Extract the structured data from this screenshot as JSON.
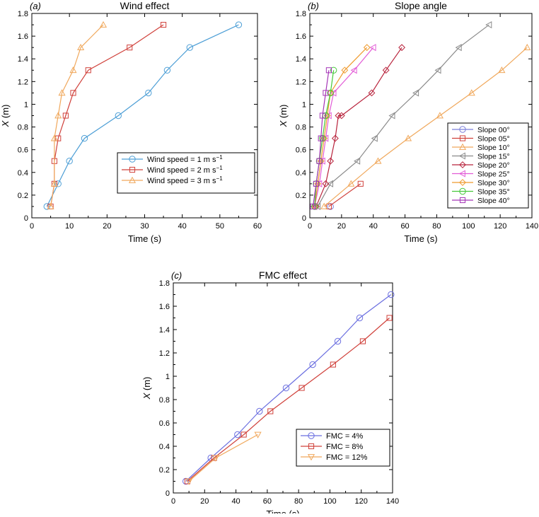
{
  "chart_data": [
    {
      "id": "a",
      "type": "line",
      "panel_label": "(a)",
      "title": "Wind effect",
      "xlabel": "Time (s)",
      "ylabel": "X (m)",
      "ylabel_var": "X",
      "ylabel_unit": " (m)",
      "xlim": [
        0,
        60
      ],
      "ylim": [
        0,
        1.8
      ],
      "xticks": [
        0,
        10,
        20,
        30,
        40,
        50,
        60
      ],
      "yticks": [
        0,
        0.2,
        0.4,
        0.6,
        0.8,
        1,
        1.2,
        1.4,
        1.6,
        1.8
      ],
      "xtick_labels": [
        "0",
        "10",
        "20",
        "30",
        "40",
        "50",
        "60"
      ],
      "ytick_labels": [
        "0",
        "0.2",
        "0.4",
        "0.6",
        "0.8",
        "1",
        "1.2",
        "1.4",
        "1.6",
        "1.8"
      ],
      "legend_position": "bottom-right",
      "series": [
        {
          "name": "Wind speed = 1 m s",
          "name_sup": "−1",
          "marker": "circle",
          "color": "#4e9fd6",
          "x": [
            4,
            7,
            10,
            14,
            23,
            31,
            36,
            42,
            55
          ],
          "y": [
            0.1,
            0.3,
            0.5,
            0.7,
            0.9,
            1.1,
            1.3,
            1.5,
            1.7
          ]
        },
        {
          "name": "Wind speed = 2 m s",
          "name_sup": "−1",
          "marker": "square",
          "color": "#d0413b",
          "x": [
            5,
            6,
            6,
            7,
            9,
            11,
            15,
            26,
            35
          ],
          "y": [
            0.1,
            0.3,
            0.5,
            0.7,
            0.9,
            1.1,
            1.3,
            1.5,
            1.7
          ]
        },
        {
          "name": "Wind speed = 3 m s",
          "name_sup": "−1",
          "marker": "triangle-up",
          "color": "#f0a85c",
          "x": [
            5,
            6,
            6,
            7,
            8,
            11,
            13,
            19
          ],
          "y": [
            0.1,
            0.3,
            0.7,
            0.9,
            1.1,
            1.3,
            1.5,
            1.7
          ]
        }
      ]
    },
    {
      "id": "b",
      "type": "line",
      "panel_label": "(b)",
      "title": "Slope angle",
      "xlabel": "Time (s)",
      "ylabel": "X (m)",
      "ylabel_var": "X",
      "ylabel_unit": " (m)",
      "xlim": [
        0,
        140
      ],
      "ylim": [
        0,
        1.8
      ],
      "xticks": [
        0,
        20,
        40,
        60,
        80,
        100,
        120,
        140
      ],
      "yticks": [
        0,
        0.2,
        0.4,
        0.6,
        0.8,
        1,
        1.2,
        1.4,
        1.6,
        1.8
      ],
      "xtick_labels": [
        "0",
        "20",
        "40",
        "60",
        "80",
        "100",
        "120",
        "140"
      ],
      "ytick_labels": [
        "0",
        "0.2",
        "0.4",
        "0.6",
        "0.8",
        "1",
        "1.2",
        "1.4",
        "1.6",
        "1.8"
      ],
      "legend_position": "bottom-right",
      "series": [
        {
          "name": "Slope 00°",
          "marker": "circle",
          "color": "#7b7fd9",
          "x": [
            13
          ],
          "y": [
            0.1
          ]
        },
        {
          "name": "Slope 05°",
          "marker": "square",
          "color": "#d0413b",
          "x": [
            12,
            32
          ],
          "y": [
            0.1,
            0.3
          ]
        },
        {
          "name": "Slope 10°",
          "marker": "triangle-up",
          "color": "#f0a85c",
          "x": [
            9,
            26,
            43,
            62,
            82,
            102,
            121,
            137
          ],
          "y": [
            0.1,
            0.3,
            0.5,
            0.7,
            0.9,
            1.1,
            1.3,
            1.5
          ]
        },
        {
          "name": "Slope 15°",
          "marker": "triangle-left",
          "color": "#8a8a8a",
          "x": [
            5,
            13,
            30,
            41,
            52,
            67,
            81,
            94,
            113
          ],
          "y": [
            0.1,
            0.3,
            0.5,
            0.7,
            0.9,
            1.1,
            1.3,
            1.5,
            1.7
          ]
        },
        {
          "name": "Slope 20°",
          "marker": "diamond",
          "color": "#b8233c",
          "x": [
            4,
            10,
            13,
            16,
            18,
            20,
            39,
            48,
            58
          ],
          "y": [
            0.1,
            0.3,
            0.5,
            0.7,
            0.9,
            0.9,
            1.1,
            1.3,
            1.5
          ]
        },
        {
          "name": "Slope 25°",
          "marker": "triangle-left",
          "color": "#e25bd6",
          "x": [
            3,
            6,
            8,
            10,
            12,
            15,
            28,
            40
          ],
          "y": [
            0.1,
            0.3,
            0.5,
            0.7,
            0.9,
            1.1,
            1.3,
            1.5
          ]
        },
        {
          "name": "Slope 30°",
          "marker": "diamond",
          "color": "#ef9a2e",
          "x": [
            3,
            5,
            7,
            9,
            11,
            13,
            22,
            36
          ],
          "y": [
            0.1,
            0.3,
            0.5,
            0.7,
            0.9,
            1.1,
            1.3,
            1.5
          ]
        },
        {
          "name": "Slope 35°",
          "marker": "circle",
          "color": "#45c83a",
          "x": [
            3,
            4,
            6,
            8,
            10,
            13,
            15
          ],
          "y": [
            0.1,
            0.3,
            0.5,
            0.7,
            0.9,
            1.1,
            1.3
          ]
        },
        {
          "name": "Slope 40°",
          "marker": "square",
          "color": "#a434b6",
          "x": [
            2,
            4,
            6,
            7,
            8,
            10,
            12
          ],
          "y": [
            0.1,
            0.3,
            0.5,
            0.7,
            0.9,
            1.1,
            1.3
          ]
        }
      ]
    },
    {
      "id": "c",
      "type": "line",
      "panel_label": "(c)",
      "title": "FMC effect",
      "xlabel": "Time (s)",
      "ylabel": "X (m)",
      "ylabel_var": "X",
      "ylabel_unit": " (m)",
      "xlim": [
        0,
        140
      ],
      "ylim": [
        0,
        1.8
      ],
      "xticks": [
        0,
        20,
        40,
        60,
        80,
        100,
        120,
        140
      ],
      "yticks": [
        0,
        0.2,
        0.4,
        0.6,
        0.8,
        1,
        1.2,
        1.4,
        1.6,
        1.8
      ],
      "xtick_labels": [
        "0",
        "20",
        "40",
        "60",
        "80",
        "100",
        "120",
        "140"
      ],
      "ytick_labels": [
        "0",
        "0.2",
        "0.4",
        "0.6",
        "0.8",
        "1",
        "1.2",
        "1.4",
        "1.6",
        "1.8"
      ],
      "legend_position": "bottom-right",
      "series": [
        {
          "name": "FMC = 4%",
          "marker": "circle",
          "color": "#6b6fe0",
          "x": [
            8,
            24,
            41,
            55,
            72,
            89,
            105,
            119,
            139
          ],
          "y": [
            0.1,
            0.3,
            0.5,
            0.7,
            0.9,
            1.1,
            1.3,
            1.5,
            1.7
          ]
        },
        {
          "name": "FMC = 8%",
          "marker": "square",
          "color": "#d0413b",
          "x": [
            9,
            26,
            45,
            62,
            82,
            102,
            121,
            138
          ],
          "y": [
            0.1,
            0.3,
            0.5,
            0.7,
            0.9,
            1.1,
            1.3,
            1.5
          ]
        },
        {
          "name": "FMC = 12%",
          "marker": "triangle-down",
          "color": "#f0a85c",
          "x": [
            10,
            27,
            54
          ],
          "y": [
            0.1,
            0.3,
            0.5
          ]
        }
      ]
    }
  ]
}
